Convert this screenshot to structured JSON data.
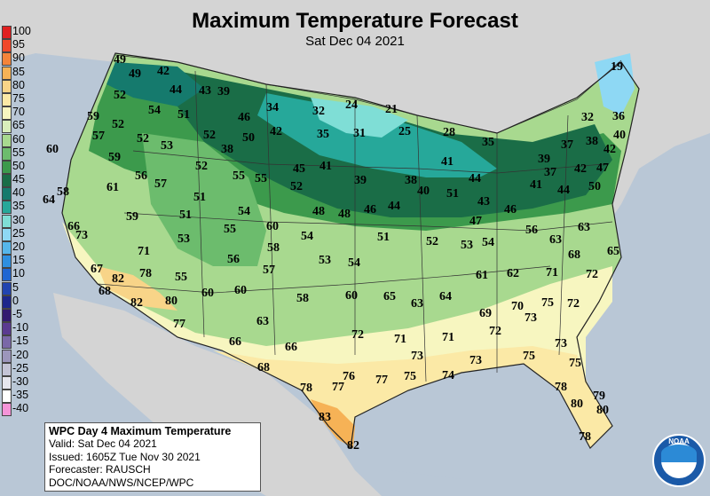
{
  "map": {
    "title": "Maximum Temperature Forecast",
    "subtitle": "Sat Dec 04 2021"
  },
  "legend": {
    "entries": [
      {
        "label": "100",
        "color": "#e02020"
      },
      {
        "label": "95",
        "color": "#f0482a"
      },
      {
        "label": "90",
        "color": "#f4843a"
      },
      {
        "label": "85",
        "color": "#f6b256"
      },
      {
        "label": "80",
        "color": "#f8d488"
      },
      {
        "label": "75",
        "color": "#fbe9a6"
      },
      {
        "label": "70",
        "color": "#f7f6c0"
      },
      {
        "label": "65",
        "color": "#d9eebb"
      },
      {
        "label": "60",
        "color": "#a8d98f"
      },
      {
        "label": "55",
        "color": "#6cbc6d"
      },
      {
        "label": "50",
        "color": "#3c9a4c"
      },
      {
        "label": "45",
        "color": "#1a6d47"
      },
      {
        "label": "40",
        "color": "#157a6d"
      },
      {
        "label": "35",
        "color": "#26a89a"
      },
      {
        "label": "30",
        "color": "#7fded6"
      },
      {
        "label": "25",
        "color": "#8ed8f4"
      },
      {
        "label": "20",
        "color": "#56b6ea"
      },
      {
        "label": "15",
        "color": "#2e8fe0"
      },
      {
        "label": "10",
        "color": "#1f66d2"
      },
      {
        "label": "5",
        "color": "#2044b0"
      },
      {
        "label": "0",
        "color": "#1c268c"
      },
      {
        "label": "-5",
        "color": "#321a70"
      },
      {
        "label": "-10",
        "color": "#5a3a90"
      },
      {
        "label": "-15",
        "color": "#7a68a8"
      },
      {
        "label": "-20",
        "color": "#9c96bc"
      },
      {
        "label": "-25",
        "color": "#c4c4d6"
      },
      {
        "label": "-30",
        "color": "#e6e6ee"
      },
      {
        "label": "-35",
        "color": "#ffffff"
      },
      {
        "label": "-40",
        "color": "#f494d8"
      }
    ]
  },
  "info": {
    "line1": "WPC Day 4 Maximum Temperature",
    "line2": "Valid: Sat Dec 04 2021",
    "line3": "Issued: 1605Z Tue Nov 30 2021",
    "line4": "Forecaster: RAUSCH",
    "line5": "DOC/NOAA/NWS/NCEP/WPC"
  },
  "logo": {
    "text": "NOAA"
  },
  "colors": {
    "ocean": "#b9c7d6",
    "land_outside": "#d4d4d4"
  },
  "temps": [
    "49",
    "49",
    "42",
    "44",
    "43",
    "39",
    "52",
    "54",
    "51",
    "59",
    "52",
    "57",
    "52",
    "53",
    "52",
    "38",
    "50",
    "46",
    "42",
    "34",
    "32",
    "24",
    "21",
    "35",
    "31",
    "25",
    "28",
    "35",
    "19",
    "32",
    "36",
    "37",
    "38",
    "40",
    "42",
    "47",
    "39",
    "37",
    "41",
    "44",
    "42",
    "50",
    "60",
    "59",
    "56",
    "57",
    "64",
    "61",
    "51",
    "58",
    "52",
    "55",
    "55",
    "41",
    "45",
    "52",
    "39",
    "38",
    "41",
    "40",
    "44",
    "43",
    "46",
    "47",
    "51",
    "56",
    "66",
    "59",
    "53",
    "51",
    "54",
    "55",
    "60",
    "48",
    "48",
    "46",
    "44",
    "51",
    "52",
    "53",
    "54",
    "73",
    "71",
    "78",
    "55",
    "56",
    "58",
    "54",
    "53",
    "54",
    "57",
    "61",
    "62",
    "63",
    "68",
    "63",
    "67",
    "65",
    "82",
    "82",
    "68",
    "80",
    "60",
    "60",
    "58",
    "60",
    "65",
    "63",
    "64",
    "71",
    "72",
    "77",
    "63",
    "66",
    "66",
    "72",
    "71",
    "71",
    "70",
    "69",
    "73",
    "72",
    "75",
    "72",
    "73",
    "75",
    "73",
    "68",
    "78",
    "77",
    "76",
    "77",
    "75",
    "74",
    "73",
    "75",
    "78",
    "79",
    "80",
    "80",
    "83",
    "82",
    "78"
  ]
}
